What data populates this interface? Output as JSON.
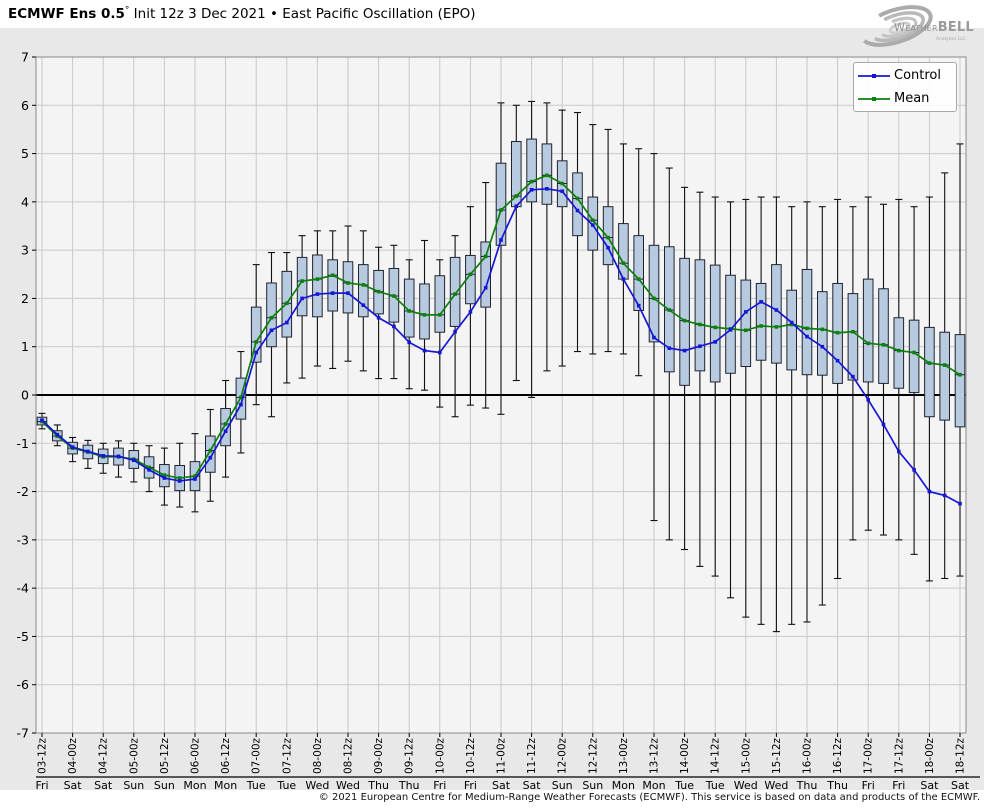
{
  "header": {
    "title_bold": "ECMWF Ens 0.5",
    "title_degree": "°",
    "title_rest": " Init 12z 3 Dec 2021 • East Pacific Oscillation (EPO)"
  },
  "logo": {
    "name": "WeatherBELL",
    "sub": "Analytics LLC"
  },
  "legend": {
    "items": [
      {
        "label": "Control",
        "color": "#1616d6"
      },
      {
        "label": "Mean",
        "color": "#0b800b"
      }
    ]
  },
  "footer": {
    "text": "© 2021 European Centre for Medium-Range Weather Forecasts (ECMWF). This service is based on data and products of the ECMWF."
  },
  "colors": {
    "figure_bg": "#e8e8e8",
    "plot_bg": "#f4f4f4",
    "grid": "#c9c9c9",
    "frame": "#8a8a8a",
    "zero_line": "#000000",
    "box_fill": "#b8cadf",
    "box_edge": "#1f2430",
    "whisker": "#101010",
    "control": "#1616d6",
    "mean": "#0b800b"
  },
  "chart_data": {
    "type": "box-whisker ensemble plume with control and mean lines",
    "title": "ECMWF Ens 0.5° Init 12z 3 Dec 2021 • East Pacific Oscillation (EPO)",
    "ylim": [
      -7,
      7
    ],
    "y_ticks": [
      7,
      6,
      5,
      4,
      3,
      2,
      1,
      0,
      -1,
      -2,
      -3,
      -4,
      -5,
      -6,
      -7
    ],
    "grid": true,
    "legend_position": "upper right",
    "x_start": "03-12z",
    "x_step_hours": 6,
    "n_points": 61,
    "x_tick_labels": [
      {
        "time": "03-12z",
        "day": "Fri"
      },
      {
        "time": "04-00z",
        "day": "Sat"
      },
      {
        "time": "04-12z",
        "day": "Sat"
      },
      {
        "time": "05-00z",
        "day": "Sun"
      },
      {
        "time": "05-12z",
        "day": "Sun"
      },
      {
        "time": "06-00z",
        "day": "Mon"
      },
      {
        "time": "06-12z",
        "day": "Mon"
      },
      {
        "time": "07-00z",
        "day": "Tue"
      },
      {
        "time": "07-12z",
        "day": "Tue"
      },
      {
        "time": "08-00z",
        "day": "Wed"
      },
      {
        "time": "08-12z",
        "day": "Wed"
      },
      {
        "time": "09-00z",
        "day": "Thu"
      },
      {
        "time": "09-12z",
        "day": "Thu"
      },
      {
        "time": "10-00z",
        "day": "Fri"
      },
      {
        "time": "10-12z",
        "day": "Fri"
      },
      {
        "time": "11-00z",
        "day": "Sat"
      },
      {
        "time": "11-12z",
        "day": "Sat"
      },
      {
        "time": "12-00z",
        "day": "Sun"
      },
      {
        "time": "12-12z",
        "day": "Sun"
      },
      {
        "time": "13-00z",
        "day": "Mon"
      },
      {
        "time": "13-12z",
        "day": "Mon"
      },
      {
        "time": "14-00z",
        "day": "Tue"
      },
      {
        "time": "14-12z",
        "day": "Tue"
      },
      {
        "time": "15-00z",
        "day": "Wed"
      },
      {
        "time": "15-12z",
        "day": "Wed"
      },
      {
        "time": "16-00z",
        "day": "Thu"
      },
      {
        "time": "16-12z",
        "day": "Thu"
      },
      {
        "time": "17-00z",
        "day": "Fri"
      },
      {
        "time": "17-12z",
        "day": "Fri"
      },
      {
        "time": "18-00z",
        "day": "Sat"
      },
      {
        "time": "18-12z",
        "day": "Sat"
      }
    ],
    "series": [
      {
        "name": "Control",
        "values": [
          -0.52,
          -0.82,
          -1.08,
          -1.17,
          -1.26,
          -1.27,
          -1.35,
          -1.55,
          -1.72,
          -1.78,
          -1.74,
          -1.3,
          -0.75,
          -0.2,
          0.88,
          1.34,
          1.5,
          2.0,
          2.09,
          2.11,
          2.11,
          1.86,
          1.6,
          1.42,
          1.09,
          0.92,
          0.88,
          1.31,
          1.72,
          2.22,
          3.21,
          3.91,
          4.25,
          4.27,
          4.22,
          3.82,
          3.52,
          3.05,
          2.4,
          1.85,
          1.19,
          0.97,
          0.92,
          1.01,
          1.1,
          1.35,
          1.72,
          1.93,
          1.76,
          1.5,
          1.21,
          1.0,
          0.71,
          0.38,
          -0.1,
          -0.61,
          -1.17,
          -1.55,
          -2.0,
          -2.08,
          -2.25
        ]
      },
      {
        "name": "Mean",
        "values": [
          -0.55,
          -0.85,
          -1.1,
          -1.18,
          -1.28,
          -1.28,
          -1.33,
          -1.5,
          -1.66,
          -1.72,
          -1.68,
          -1.15,
          -0.6,
          -0.05,
          1.1,
          1.6,
          1.9,
          2.36,
          2.4,
          2.48,
          2.32,
          2.28,
          2.14,
          2.05,
          1.74,
          1.66,
          1.66,
          2.09,
          2.5,
          2.87,
          3.83,
          4.12,
          4.42,
          4.55,
          4.38,
          4.07,
          3.62,
          3.26,
          2.73,
          2.4,
          2.0,
          1.76,
          1.54,
          1.46,
          1.4,
          1.37,
          1.34,
          1.43,
          1.41,
          1.46,
          1.38,
          1.36,
          1.29,
          1.31,
          1.07,
          1.04,
          0.92,
          0.88,
          0.66,
          0.62,
          0.42
        ]
      }
    ],
    "boxes": {
      "p25": [
        -0.62,
        -0.95,
        -1.22,
        -1.32,
        -1.42,
        -1.45,
        -1.52,
        -1.72,
        -1.9,
        -1.98,
        -1.98,
        -1.6,
        -1.05,
        -0.5,
        0.68,
        1.0,
        1.2,
        1.64,
        1.62,
        1.74,
        1.7,
        1.62,
        1.68,
        1.51,
        1.2,
        1.16,
        1.3,
        1.42,
        1.89,
        1.82,
        3.1,
        3.9,
        4.0,
        3.95,
        3.9,
        3.3,
        3.0,
        2.7,
        2.4,
        1.75,
        1.1,
        0.48,
        0.2,
        0.5,
        0.27,
        0.45,
        0.59,
        0.72,
        0.66,
        0.52,
        0.42,
        0.41,
        0.24,
        0.31,
        0.27,
        0.24,
        0.14,
        0.05,
        -0.45,
        -0.52,
        -0.66
      ],
      "p75": [
        -0.46,
        -0.74,
        -0.98,
        -1.04,
        -1.12,
        -1.1,
        -1.15,
        -1.28,
        -1.44,
        -1.46,
        -1.38,
        -0.85,
        -0.28,
        0.35,
        1.82,
        2.32,
        2.56,
        2.85,
        2.9,
        2.8,
        2.76,
        2.7,
        2.58,
        2.62,
        2.4,
        2.3,
        2.47,
        2.85,
        2.89,
        3.17,
        4.8,
        5.25,
        5.3,
        5.2,
        4.85,
        4.6,
        4.1,
        3.9,
        3.55,
        3.3,
        3.1,
        3.07,
        2.83,
        2.8,
        2.69,
        2.48,
        2.38,
        2.31,
        2.7,
        2.17,
        2.6,
        2.14,
        2.31,
        2.1,
        2.4,
        2.2,
        1.6,
        1.55,
        1.4,
        1.3,
        1.25
      ],
      "whisker_min": [
        -0.7,
        -1.05,
        -1.38,
        -1.52,
        -1.62,
        -1.7,
        -1.8,
        -2.0,
        -2.28,
        -2.32,
        -2.42,
        -2.2,
        -1.7,
        -1.2,
        -0.2,
        -0.45,
        0.25,
        0.35,
        0.6,
        0.55,
        0.7,
        0.5,
        0.34,
        0.34,
        0.13,
        0.1,
        -0.25,
        -0.45,
        -0.21,
        -0.27,
        -0.4,
        0.3,
        -0.05,
        0.5,
        0.6,
        0.9,
        0.85,
        0.9,
        0.85,
        0.4,
        -2.6,
        -3.0,
        -3.2,
        -3.55,
        -3.75,
        -4.2,
        -4.6,
        -4.75,
        -4.9,
        -4.75,
        -4.7,
        -4.35,
        -3.8,
        -3.0,
        -2.8,
        -2.9,
        -3.0,
        -3.3,
        -3.85,
        -3.8,
        -3.75
      ],
      "whisker_max": [
        -0.38,
        -0.62,
        -0.88,
        -0.94,
        -1.0,
        -0.95,
        -1.0,
        -1.05,
        -1.1,
        -1.0,
        -0.8,
        -0.3,
        0.3,
        0.9,
        2.7,
        2.95,
        2.95,
        3.3,
        3.4,
        3.4,
        3.5,
        3.4,
        3.06,
        3.1,
        2.8,
        3.2,
        2.8,
        3.3,
        3.9,
        4.4,
        6.05,
        6.0,
        6.08,
        6.05,
        5.9,
        5.85,
        5.6,
        5.5,
        5.2,
        5.1,
        5.0,
        4.7,
        4.3,
        4.2,
        4.1,
        4.0,
        4.05,
        4.1,
        4.1,
        3.9,
        4.0,
        3.9,
        4.05,
        3.9,
        4.1,
        3.95,
        4.05,
        3.9,
        4.1,
        4.6,
        5.2
      ]
    }
  }
}
